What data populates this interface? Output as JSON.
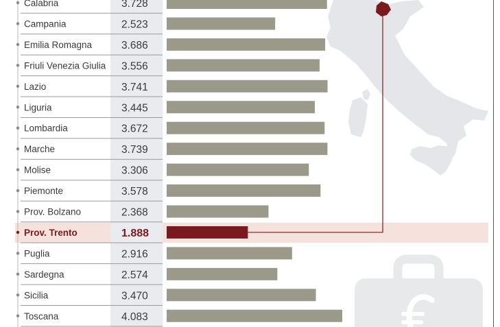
{
  "chart_data": {
    "type": "bar",
    "orientation": "horizontal",
    "categories": [
      "Calabria",
      "Campania",
      "Emilia Romagna",
      "Friuli Venezia Giulia",
      "Lazio",
      "Liguria",
      "Lombardia",
      "Marche",
      "Molise",
      "Piemonte",
      "Prov. Bolzano",
      "Prov. Trento",
      "Puglia",
      "Sardegna",
      "Sicilia",
      "Toscana"
    ],
    "value_labels": [
      "3.728",
      "2.523",
      "3.686",
      "3.556",
      "3.741",
      "3.445",
      "3.672",
      "3.739",
      "3.306",
      "3.578",
      "2.368",
      "1.888",
      "2.916",
      "2.574",
      "3.470",
      "4.083"
    ],
    "values": [
      3728,
      2523,
      3686,
      3556,
      3741,
      3445,
      3672,
      3739,
      3306,
      3578,
      2368,
      1888,
      2916,
      2574,
      3470,
      4083
    ],
    "highlight": "Prov. Trento",
    "grid": false,
    "colors": {
      "bar": "#9b9a8a",
      "highlight_bar": "#7a1a1f",
      "highlight_band": "#f6e2dd",
      "highlight_text": "#7a1a1f",
      "label_text": "#3a3a3a",
      "value_column": "#e9ebee",
      "row_rule": "#9a9a9a",
      "map": "#e4e6e9",
      "map_highlight": "#7a1a1f",
      "suitcase": "#e8e9ea"
    },
    "icons": [
      "italy-map",
      "suitcase-euro-icon"
    ]
  }
}
